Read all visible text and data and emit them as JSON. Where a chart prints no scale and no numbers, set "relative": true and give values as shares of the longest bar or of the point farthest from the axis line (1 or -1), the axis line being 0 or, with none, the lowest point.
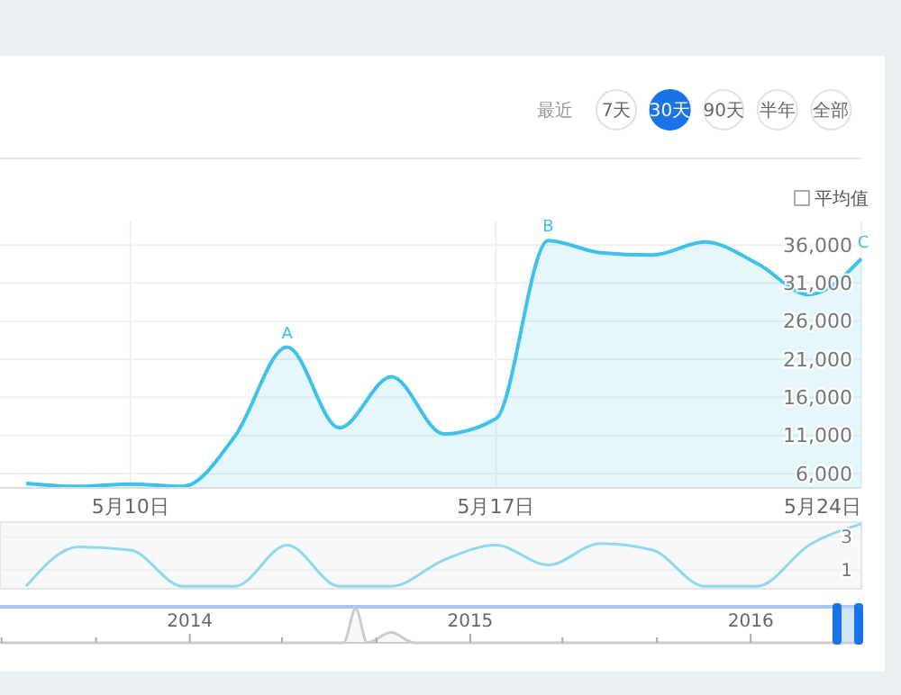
{
  "chart_data": [
    {
      "type": "area",
      "x": [
        "2016-05-08",
        "2016-05-09",
        "2016-05-10",
        "2016-05-11",
        "2016-05-12",
        "2016-05-13",
        "2016-05-14",
        "2016-05-15",
        "2016-05-16",
        "2016-05-17",
        "2016-05-18",
        "2016-05-19",
        "2016-05-20",
        "2016-05-21",
        "2016-05-22",
        "2016-05-23",
        "2016-05-24"
      ],
      "series": [
        {
          "color": "#3ec1ea",
          "values": [
            4700,
            4300,
            4600,
            4300,
            10900,
            22600,
            12000,
            18700,
            11200,
            13200,
            36600,
            35000,
            34700,
            36400,
            33600,
            29500,
            34200
          ]
        }
      ],
      "xlim": [
        "2016-05-07T12:00",
        "2016-05-24"
      ],
      "ylim": [
        4100,
        39100
      ],
      "xticks": [
        {
          "value": "2016-05-10",
          "label": "5月10日"
        },
        {
          "value": "2016-05-17",
          "label": "5月17日"
        },
        {
          "value": "2016-05-24",
          "label": "5月24日"
        }
      ],
      "yticks": [
        {
          "value": 6000,
          "label": "6,000"
        },
        {
          "value": 11000,
          "label": "11,000"
        },
        {
          "value": 16000,
          "label": "16,000"
        },
        {
          "value": 21000,
          "label": "21,000"
        },
        {
          "value": 26000,
          "label": "26,000"
        },
        {
          "value": 31000,
          "label": "31,000"
        },
        {
          "value": 36000,
          "label": "36,000"
        }
      ],
      "grid": true,
      "annotations": [
        {
          "text": "A",
          "x": "2016-05-13",
          "y": 22600
        },
        {
          "text": "B",
          "x": "2016-05-18",
          "y": 36600
        },
        {
          "text": "C",
          "x": "2016-05-24",
          "y": 34200
        },
        "最近",
        "7天",
        "30天",
        "90天",
        "半年",
        "全部",
        "平均值"
      ]
    },
    {
      "type": "line",
      "x": [
        "2016-05-08",
        "2016-05-09",
        "2016-05-10",
        "2016-05-11",
        "2016-05-12",
        "2016-05-13",
        "2016-05-14",
        "2016-05-15",
        "2016-05-16",
        "2016-05-17",
        "2016-05-18",
        "2016-05-19",
        "2016-05-20",
        "2016-05-21",
        "2016-05-22",
        "2016-05-23",
        "2016-05-24"
      ],
      "series": [
        {
          "color": "#8fd8f0",
          "values": [
            0,
            2.4,
            2.2,
            0,
            0,
            2.5,
            0,
            0,
            1.6,
            2.5,
            1.3,
            2.6,
            2.2,
            0,
            0,
            2.5,
            3.8
          ]
        }
      ],
      "xlim": [
        "2016-05-07T12:00",
        "2016-05-24"
      ],
      "ylim": [
        -0.15,
        3.9
      ],
      "yticks": [
        1,
        3
      ],
      "grid": "y",
      "tick_labels": "y"
    },
    {
      "type": "area",
      "relative": true,
      "x": [
        "2013-05-01",
        "2014-07-20",
        "2014-08-05",
        "2014-08-20",
        "2014-09-20",
        "2014-10-20",
        "2016-05-24"
      ],
      "series": [
        {
          "color": "#cccccc",
          "values": [
            0,
            0,
            1,
            0,
            0.3,
            0,
            0
          ]
        }
      ],
      "xlim": [
        "2013-04-29",
        "2016-05-24"
      ],
      "xticks": [
        {
          "value": "2013-05-01",
          "label": null
        },
        {
          "value": "2013-09-01",
          "label": null
        },
        {
          "value": "2014-01-01",
          "label": "2014"
        },
        {
          "value": "2014-05-01",
          "label": null
        },
        {
          "value": "2014-09-01",
          "label": null
        },
        {
          "value": "2015-01-01",
          "label": "2015"
        },
        {
          "value": "2015-05-01",
          "label": null
        },
        {
          "value": "2015-09-01",
          "label": null
        },
        {
          "value": "2016-01-01",
          "label": "2016"
        }
      ],
      "tick_labels": "x"
    }
  ]
}
